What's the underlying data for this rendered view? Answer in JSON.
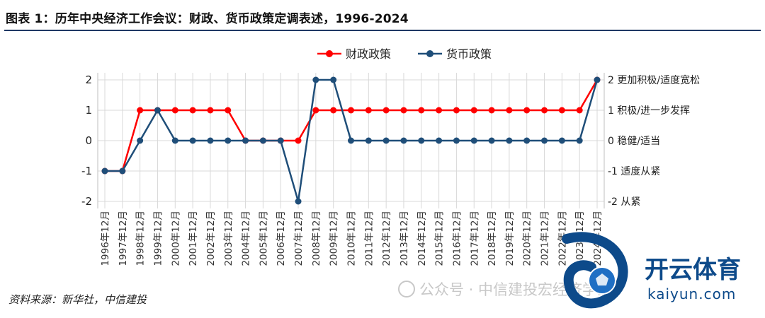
{
  "title": "图表 1：历年中央经济工作会议：财政、货币政策定调表述，1996-2024",
  "source": "资料来源：新华社，中信建投",
  "watermark": {
    "text": "公众号 · 中信建投宏经济学家",
    "brand_name": "开云体育",
    "brand_url": "kaiyun.com",
    "brand_color": "#0d4a8a"
  },
  "chart_data": {
    "type": "line",
    "categories": [
      "1996年12月",
      "1997年12月",
      "1998年12月",
      "1999年12月",
      "2000年12月",
      "2001年12月",
      "2002年12月",
      "2003年12月",
      "2004年12月",
      "2005年12月",
      "2006年12月",
      "2007年12月",
      "2008年12月",
      "2009年12月",
      "2010年12月",
      "2011年12月",
      "2012年12月",
      "2013年12月",
      "2014年12月",
      "2015年12月",
      "2016年12月",
      "2017年12月",
      "2018年12月",
      "2019年12月",
      "2020年12月",
      "2021年12月",
      "2022年12月",
      "2023年12月",
      "2024年12月"
    ],
    "series": [
      {
        "name": "财政政策",
        "color": "#ff0000",
        "values": [
          -1,
          -1,
          1,
          1,
          1,
          1,
          1,
          1,
          0,
          0,
          0,
          0,
          1,
          1,
          1,
          1,
          1,
          1,
          1,
          1,
          1,
          1,
          1,
          1,
          1,
          1,
          1,
          1,
          2
        ]
      },
      {
        "name": "货币政策",
        "color": "#1f4e79",
        "values": [
          -1,
          -1,
          0,
          1,
          0,
          0,
          0,
          0,
          0,
          0,
          0,
          -2,
          2,
          2,
          0,
          0,
          0,
          0,
          0,
          0,
          0,
          0,
          0,
          0,
          0,
          0,
          0,
          0,
          2
        ]
      }
    ],
    "y_ticks": [
      "2",
      "1",
      "0",
      "-1",
      "-2"
    ],
    "ylim": [
      -2,
      2
    ],
    "right_labels": [
      {
        "value": 2,
        "label": "2 更加积极/适度宽松"
      },
      {
        "value": 1,
        "label": "1 积极/进一步发挥"
      },
      {
        "value": 0,
        "label": "0 稳健/适当"
      },
      {
        "value": -1,
        "label": "-1 适度从紧"
      },
      {
        "value": -2,
        "label": "-2 从紧"
      }
    ],
    "legend_position": "top-center",
    "grid": true
  }
}
